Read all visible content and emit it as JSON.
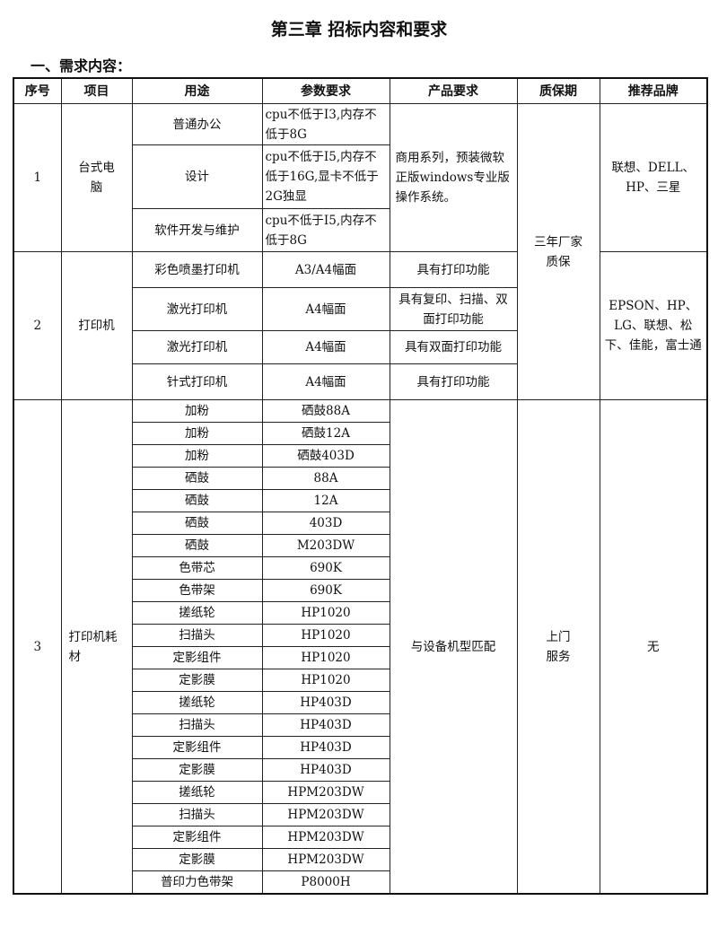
{
  "title": "第三章  招标内容和要求",
  "section": "一、需求内容：",
  "headers": [
    "序号",
    "项目",
    "用途",
    "参数要求",
    "产品要求",
    "质保期",
    "推荐品牌"
  ],
  "warranty_1_2": "三年厂家质保",
  "group1": {
    "no": "1",
    "item": "台式电脑",
    "product_req": "商用系列，预装微软正版windows专业版操作系统。",
    "brand": "联想、DELL、HP、三星",
    "rows": [
      {
        "use": "普通办公",
        "param": "cpu不低于I3,内存不低于8G"
      },
      {
        "use": "设计",
        "param": "cpu不低于I5,内存不低于16G,显卡不低于2G独显"
      },
      {
        "use": "软件开发与维护",
        "param": "cpu不低于I5,内存不低于8G"
      }
    ]
  },
  "group2": {
    "no": "2",
    "item": "打印机",
    "brand": "EPSON、HP、LG、联想、松下、佳能，富士通",
    "rows": [
      {
        "use": "彩色喷墨打印机",
        "param": "A3/A4幅面",
        "product_req": "具有打印功能"
      },
      {
        "use": "激光打印机",
        "param": "A4幅面",
        "product_req": "具有复印、扫描、双面打印功能"
      },
      {
        "use": "激光打印机",
        "param": "A4幅面",
        "product_req": "具有双面打印功能"
      },
      {
        "use": "针式打印机",
        "param": "A4幅面",
        "product_req": "具有打印功能"
      }
    ]
  },
  "group3": {
    "no": "3",
    "item": "打印机耗材",
    "product_req": "与设备机型匹配",
    "warranty": "上门服务",
    "brand": "无",
    "rows": [
      {
        "use": "加粉",
        "param": "硒鼓88A"
      },
      {
        "use": "加粉",
        "param": "硒鼓12A"
      },
      {
        "use": "加粉",
        "param": "硒鼓403D"
      },
      {
        "use": "硒鼓",
        "param": "88A"
      },
      {
        "use": "硒鼓",
        "param": "12A"
      },
      {
        "use": "硒鼓",
        "param": "403D"
      },
      {
        "use": "硒鼓",
        "param": "M203DW"
      },
      {
        "use": "色带芯",
        "param": "690K"
      },
      {
        "use": "色带架",
        "param": "690K"
      },
      {
        "use": "搓纸轮",
        "param": "HP1020"
      },
      {
        "use": "扫描头",
        "param": "HP1020"
      },
      {
        "use": "定影组件",
        "param": "HP1020"
      },
      {
        "use": "定影膜",
        "param": "HP1020"
      },
      {
        "use": "搓纸轮",
        "param": "HP403D"
      },
      {
        "use": "扫描头",
        "param": "HP403D"
      },
      {
        "use": "定影组件",
        "param": "HP403D"
      },
      {
        "use": "定影膜",
        "param": "HP403D"
      },
      {
        "use": "搓纸轮",
        "param": "HPM203DW"
      },
      {
        "use": "扫描头",
        "param": "HPM203DW"
      },
      {
        "use": "定影组件",
        "param": "HPM203DW"
      },
      {
        "use": "定影膜",
        "param": "HPM203DW"
      },
      {
        "use": "普印力色带架",
        "param": "P8000H"
      }
    ]
  }
}
